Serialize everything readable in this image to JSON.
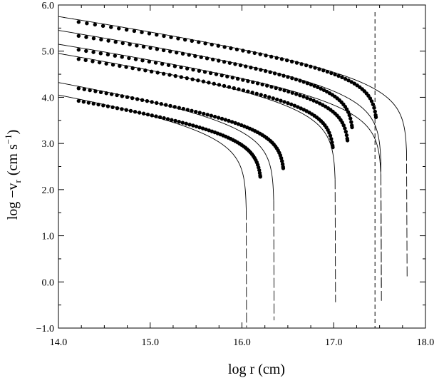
{
  "chart_data": {
    "type": "scatter",
    "xlabel": "log r (cm)",
    "ylabel_main": "log −v",
    "ylabel_sub": "r",
    "ylabel_unit": "(cm s",
    "ylabel_exp": "−1",
    "ylabel_close": ")",
    "xlim": [
      14.0,
      18.0
    ],
    "ylim": [
      -1.0,
      6.0
    ],
    "x_ticks": [
      {
        "value": 14.0,
        "label": "14.0"
      },
      {
        "value": 15.0,
        "label": "15.0"
      },
      {
        "value": 16.0,
        "label": "16.0"
      },
      {
        "value": 17.0,
        "label": "17.0"
      },
      {
        "value": 18.0,
        "label": "18.0"
      }
    ],
    "y_ticks": [
      {
        "value": -1.0,
        "label": "−1.0"
      },
      {
        "value": 0.0,
        "label": "0.0"
      },
      {
        "value": 1.0,
        "label": "1.0"
      },
      {
        "value": 2.0,
        "label": "2.0"
      },
      {
        "value": 3.0,
        "label": "3.0"
      },
      {
        "value": 4.0,
        "label": "4.0"
      },
      {
        "value": 5.0,
        "label": "5.0"
      },
      {
        "value": 6.0,
        "label": "6.0"
      }
    ],
    "grid": false,
    "vertical_dashed_lines": [
      17.45
    ],
    "series": [
      {
        "y0": 5.75,
        "slope": 0.24,
        "xa": 17.8,
        "curvature": 0.72,
        "dot_edge": 17.46
      },
      {
        "y0": 5.45,
        "slope": 0.24,
        "xa": 17.52,
        "curvature": 0.72,
        "dot_edge": 17.2
      },
      {
        "y0": 5.15,
        "slope": 0.24,
        "xa": 17.52,
        "curvature": 0.72,
        "dot_edge": 17.15
      },
      {
        "y0": 4.95,
        "slope": 0.24,
        "xa": 17.02,
        "curvature": 0.72,
        "dot_edge": 16.99
      },
      {
        "y0": 4.32,
        "slope": 0.24,
        "xa": 16.35,
        "curvature": 0.72,
        "dot_edge": 16.45
      },
      {
        "y0": 4.05,
        "slope": 0.24,
        "xa": 16.05,
        "curvature": 0.72,
        "dot_edge": 16.2
      }
    ]
  }
}
